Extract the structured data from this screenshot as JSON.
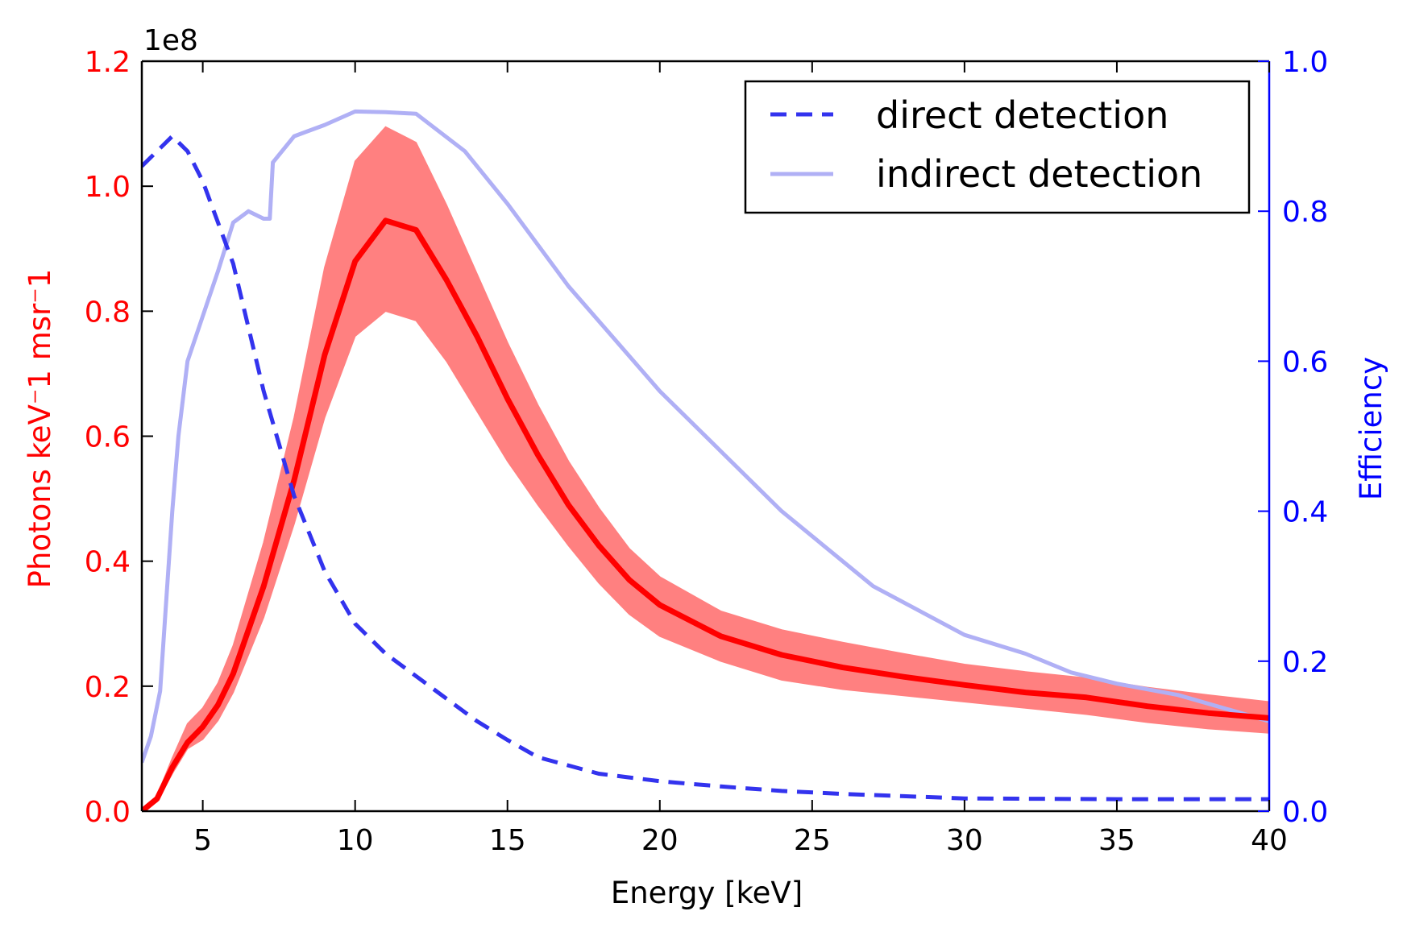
{
  "chart_data": {
    "type": "line",
    "xlabel": "Energy [keV]",
    "ylabel_left": "Photons keV⁻1 msr⁻1",
    "ylabel_right": "Efficiency",
    "left_offset_text": "1e8",
    "xlim": [
      3,
      40
    ],
    "ylim_left": [
      0,
      1.2
    ],
    "ylim_right": [
      0,
      1.0
    ],
    "x_ticks": [
      5,
      10,
      15,
      20,
      25,
      30,
      35,
      40
    ],
    "x_tick_labels": [
      "5",
      "10",
      "15",
      "20",
      "25",
      "30",
      "35",
      "40"
    ],
    "yleft_ticks": [
      0,
      0.2,
      0.4,
      0.6,
      0.8,
      1.0,
      1.2
    ],
    "yleft_tick_labels": [
      "0.0",
      "0.2",
      "0.4",
      "0.6",
      "0.8",
      "1.0",
      "1.2"
    ],
    "yright_ticks": [
      0,
      0.2,
      0.4,
      0.6,
      0.8,
      1.0
    ],
    "yright_tick_labels": [
      "0.0",
      "0.2",
      "0.4",
      "0.6",
      "0.8",
      "1.0"
    ],
    "grid": false,
    "legend_position": "top-right",
    "colors": {
      "left_axis": "#ff0000",
      "right_axis": "#0000ff",
      "spectrum": "#ff0000",
      "band": "#ff8080",
      "direct": "#3333ee",
      "indirect": "#b0b0f5"
    },
    "spectrum": {
      "axis": "left",
      "x": [
        3,
        3.5,
        4,
        4.5,
        5,
        5.5,
        6,
        7,
        8,
        9,
        10,
        11,
        12,
        13,
        14,
        15,
        16,
        17,
        18,
        19,
        20,
        22,
        24,
        26,
        28,
        30,
        32,
        34,
        36,
        38,
        40
      ],
      "y": [
        0.0,
        0.02,
        0.07,
        0.11,
        0.135,
        0.17,
        0.22,
        0.36,
        0.53,
        0.73,
        0.88,
        0.945,
        0.93,
        0.85,
        0.76,
        0.66,
        0.57,
        0.49,
        0.425,
        0.37,
        0.33,
        0.28,
        0.25,
        0.23,
        0.215,
        0.202,
        0.19,
        0.182,
        0.168,
        0.157,
        0.149
      ],
      "band_upper": [
        0.0,
        0.025,
        0.085,
        0.14,
        0.165,
        0.205,
        0.265,
        0.43,
        0.63,
        0.87,
        1.04,
        1.095,
        1.07,
        0.97,
        0.86,
        0.75,
        0.65,
        0.56,
        0.485,
        0.42,
        0.375,
        0.32,
        0.29,
        0.27,
        0.252,
        0.235,
        0.223,
        0.213,
        0.198,
        0.186,
        0.175
      ],
      "band_lower": [
        0.0,
        0.015,
        0.06,
        0.1,
        0.115,
        0.145,
        0.19,
        0.31,
        0.46,
        0.63,
        0.76,
        0.8,
        0.785,
        0.72,
        0.64,
        0.56,
        0.49,
        0.425,
        0.365,
        0.315,
        0.28,
        0.24,
        0.21,
        0.195,
        0.185,
        0.175,
        0.165,
        0.155,
        0.142,
        0.132,
        0.125
      ]
    },
    "series": [
      {
        "name": "direct detection",
        "axis": "right",
        "style": "dashed",
        "x": [
          3,
          3.5,
          4,
          4.5,
          5,
          6,
          7,
          8,
          9,
          10,
          11,
          12,
          13,
          14,
          15,
          16,
          18,
          20,
          22,
          24,
          26,
          28,
          30,
          35,
          40
        ],
        "y": [
          0.86,
          0.88,
          0.9,
          0.88,
          0.84,
          0.73,
          0.56,
          0.42,
          0.32,
          0.25,
          0.21,
          0.18,
          0.15,
          0.12,
          0.095,
          0.072,
          0.05,
          0.04,
          0.033,
          0.027,
          0.023,
          0.02,
          0.017,
          0.016,
          0.016
        ]
      },
      {
        "name": "indirect detection",
        "axis": "right",
        "style": "solid",
        "x": [
          3,
          3.3,
          3.6,
          4,
          4.2,
          4.5,
          5,
          5.5,
          6,
          6.5,
          7,
          7.2,
          7.3,
          8,
          9,
          10,
          11,
          12,
          13.6,
          15,
          17,
          20,
          22,
          24,
          27,
          30,
          32,
          33.5,
          35,
          37,
          40
        ],
        "y": [
          0.065,
          0.1,
          0.16,
          0.4,
          0.5,
          0.6,
          0.66,
          0.72,
          0.785,
          0.8,
          0.79,
          0.79,
          0.865,
          0.9,
          0.915,
          0.933,
          0.932,
          0.93,
          0.88,
          0.81,
          0.7,
          0.56,
          0.48,
          0.4,
          0.3,
          0.235,
          0.21,
          0.185,
          0.17,
          0.155,
          0.12
        ]
      }
    ]
  }
}
